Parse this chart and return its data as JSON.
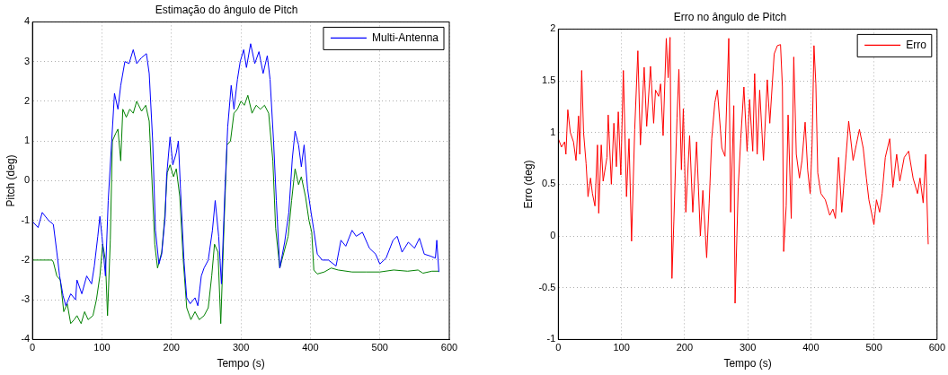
{
  "chart_data": [
    {
      "type": "line",
      "title": "Estimação do ângulo de Pitch",
      "xlabel": "Tempo (s)",
      "ylabel": "Pitch (deg)",
      "xlim": [
        0,
        600
      ],
      "xticks": [
        0,
        100,
        200,
        300,
        400,
        500,
        600
      ],
      "ylim": [
        -4,
        4
      ],
      "yticks": [
        -4,
        -3,
        -2,
        -1,
        0,
        1,
        2,
        3,
        4
      ],
      "grid": true,
      "legend": "top right",
      "series": [
        {
          "name": "Multi-Antenna",
          "color": "#0000ff",
          "x": [
            0,
            8,
            14,
            23,
            30,
            35,
            39,
            44,
            48,
            55,
            62,
            64,
            71,
            78,
            85,
            89,
            94,
            97,
            100,
            105,
            109,
            114,
            118,
            123,
            127,
            133,
            139,
            145,
            150,
            157,
            164,
            168,
            173,
            177,
            182,
            186,
            191,
            193,
            198,
            202,
            207,
            210,
            213,
            218,
            222,
            227,
            234,
            238,
            243,
            247,
            253,
            259,
            263,
            268,
            272,
            277,
            281,
            286,
            290,
            295,
            299,
            304,
            308,
            314,
            320,
            326,
            332,
            338,
            342,
            347,
            351,
            356,
            363,
            369,
            374,
            378,
            383,
            387,
            391,
            396,
            401,
            405,
            410,
            417,
            426,
            437,
            444,
            451,
            460,
            466,
            475,
            485,
            494,
            500,
            509,
            519,
            525,
            532,
            541,
            550,
            557,
            564,
            573,
            580,
            582,
            585
          ],
          "values": [
            -1.03,
            -1.18,
            -0.8,
            -1.0,
            -1.1,
            -1.8,
            -2.4,
            -2.9,
            -3.15,
            -2.85,
            -3.0,
            -2.5,
            -2.85,
            -2.4,
            -2.6,
            -2.15,
            -1.4,
            -0.9,
            -1.4,
            -2.4,
            -0.5,
            1.0,
            2.2,
            1.8,
            2.4,
            3.0,
            2.95,
            3.3,
            2.95,
            3.1,
            3.2,
            2.7,
            1.0,
            -1.25,
            -2.1,
            -1.85,
            -0.9,
            0.1,
            1.1,
            0.4,
            0.7,
            1.0,
            -0.2,
            -2.0,
            -2.95,
            -3.1,
            -2.95,
            -3.15,
            -2.4,
            -2.2,
            -2.0,
            -1.25,
            -0.5,
            -1.4,
            -2.6,
            -0.25,
            1.35,
            2.4,
            1.8,
            2.55,
            3.0,
            3.3,
            2.85,
            3.45,
            2.95,
            3.25,
            2.7,
            3.15,
            2.55,
            1.0,
            -0.5,
            -2.2,
            -1.55,
            -0.8,
            0.55,
            1.25,
            0.9,
            0.35,
            0.9,
            -0.2,
            -0.8,
            -1.25,
            -1.85,
            -2.0,
            -2.0,
            -2.15,
            -1.5,
            -1.65,
            -1.25,
            -1.4,
            -1.3,
            -1.7,
            -1.85,
            -2.1,
            -1.95,
            -1.5,
            -1.4,
            -1.8,
            -1.55,
            -1.7,
            -1.45,
            -1.85,
            -1.9,
            -1.95,
            -1.5,
            -2.3
          ]
        },
        {
          "color": "#008000",
          "x": [
            0,
            10,
            28,
            30,
            35,
            40,
            45,
            50,
            55,
            60,
            64,
            70,
            75,
            80,
            87,
            92,
            97,
            101,
            105,
            108,
            112,
            115,
            120,
            123,
            127,
            130,
            135,
            140,
            145,
            150,
            157,
            163,
            168,
            172,
            176,
            180,
            186,
            190,
            194,
            198,
            203,
            207,
            212,
            217,
            222,
            228,
            234,
            240,
            247,
            253,
            258,
            262,
            267,
            271,
            276,
            280,
            285,
            290,
            295,
            300,
            305,
            310,
            316,
            322,
            328,
            334,
            340,
            346,
            350,
            356,
            362,
            368,
            373,
            378,
            383,
            387,
            393,
            398,
            402,
            405,
            410,
            420,
            430,
            440,
            460,
            480,
            500,
            520,
            540,
            555,
            562,
            575,
            585
          ],
          "values": [
            -2.0,
            -2.0,
            -2.0,
            -2.05,
            -2.4,
            -2.5,
            -3.3,
            -3.1,
            -3.6,
            -3.5,
            -3.4,
            -3.6,
            -3.3,
            -3.5,
            -3.4,
            -3.0,
            -2.4,
            -1.6,
            -2.0,
            -3.4,
            -1.5,
            1.0,
            1.2,
            1.3,
            0.5,
            1.8,
            1.6,
            1.8,
            1.7,
            2.0,
            1.75,
            1.9,
            1.5,
            0.0,
            -1.6,
            -2.2,
            -1.8,
            -1.0,
            0.2,
            0.4,
            0.1,
            0.3,
            -0.4,
            -2.0,
            -3.2,
            -3.5,
            -3.3,
            -3.5,
            -3.4,
            -3.2,
            -2.4,
            -1.6,
            -1.8,
            -3.6,
            -1.0,
            0.9,
            1.0,
            1.7,
            1.8,
            2.0,
            1.9,
            2.15,
            1.7,
            1.9,
            1.8,
            1.9,
            1.7,
            0.5,
            -1.2,
            -2.2,
            -1.8,
            -1.4,
            -0.5,
            0.3,
            -0.1,
            0.1,
            -0.4,
            -1.0,
            -1.3,
            -2.25,
            -2.35,
            -2.3,
            -2.2,
            -2.25,
            -2.3,
            -2.3,
            -2.3,
            -2.25,
            -2.28,
            -2.25,
            -2.33,
            -2.28,
            -2.28
          ]
        }
      ]
    },
    {
      "type": "line",
      "title": "Erro no ângulo de Pitch",
      "xlabel": "Tempo (s)",
      "ylabel": "Erro (deg)",
      "xlim": [
        0,
        600
      ],
      "xticks": [
        0,
        100,
        200,
        300,
        400,
        500,
        600
      ],
      "ylim": [
        -1,
        2
      ],
      "yticks": [
        -1,
        -0.5,
        0,
        0.5,
        1,
        1.5,
        2
      ],
      "grid": true,
      "legend": "top right",
      "series": [
        {
          "name": "Erro",
          "color": "#ff0000",
          "x": [
            0,
            5,
            10,
            12,
            15,
            19,
            24,
            28,
            32,
            34,
            37,
            40,
            44,
            47,
            51,
            54,
            58,
            62,
            64,
            68,
            71,
            77,
            79,
            84,
            88,
            92,
            95,
            99,
            103,
            108,
            112,
            116,
            121,
            126,
            130,
            136,
            140,
            146,
            151,
            154,
            159,
            162,
            166,
            171,
            174,
            177,
            180,
            183,
            188,
            191,
            195,
            198,
            202,
            208,
            213,
            219,
            225,
            229,
            235,
            239,
            243,
            248,
            252,
            259,
            264,
            270,
            273,
            278,
            280,
            285,
            289,
            294,
            299,
            303,
            308,
            311,
            315,
            319,
            325,
            331,
            335,
            342,
            347,
            352,
            355,
            357,
            361,
            364,
            369,
            373,
            377,
            382,
            386,
            391,
            395,
            399,
            402,
            405,
            408,
            411,
            416,
            423,
            430,
            435,
            439,
            444,
            449,
            456,
            460,
            467,
            472,
            477,
            483,
            488,
            492,
            500,
            504,
            509,
            513,
            518,
            525,
            530,
            536,
            541,
            548,
            555,
            562,
            569,
            573,
            578,
            582,
            586
          ],
          "values": [
            0.94,
            0.86,
            0.91,
            0.79,
            1.22,
            1.0,
            0.91,
            0.73,
            1.16,
            0.79,
            1.6,
            1.0,
            0.7,
            0.38,
            0.56,
            0.41,
            0.29,
            0.88,
            0.22,
            0.88,
            0.53,
            0.76,
            1.17,
            0.5,
            1.09,
            0.67,
            1.2,
            0.59,
            1.6,
            0.38,
            0.94,
            -0.05,
            1.03,
            1.79,
            0.88,
            1.63,
            1.06,
            1.64,
            1.09,
            1.41,
            1.35,
            1.47,
            0.97,
            1.91,
            1.53,
            1.92,
            -0.41,
            0.14,
            1.14,
            1.61,
            0.64,
            1.23,
            0.23,
            0.97,
            0.23,
            0.91,
            0.0,
            0.44,
            -0.21,
            0.32,
            0.94,
            1.29,
            1.41,
            0.85,
            0.77,
            1.91,
            0.23,
            1.26,
            -0.65,
            0.47,
            0.94,
            1.44,
            0.82,
            1.32,
            0.82,
            1.57,
            0.79,
            1.41,
            0.73,
            1.51,
            1.09,
            1.76,
            1.84,
            1.85,
            1.44,
            -0.15,
            0.29,
            1.17,
            0.17,
            1.73,
            0.79,
            0.56,
            0.73,
            1.1,
            0.64,
            0.41,
            0.88,
            1.84,
            1.47,
            0.61,
            0.41,
            0.35,
            0.2,
            0.26,
            0.17,
            0.76,
            0.23,
            0.79,
            1.11,
            0.73,
            0.88,
            1.03,
            0.85,
            0.56,
            0.35,
            0.11,
            0.35,
            0.23,
            0.41,
            0.76,
            0.94,
            0.47,
            0.79,
            0.53,
            0.76,
            0.82,
            0.56,
            0.41,
            0.56,
            0.32,
            0.79,
            -0.08
          ]
        }
      ]
    }
  ]
}
